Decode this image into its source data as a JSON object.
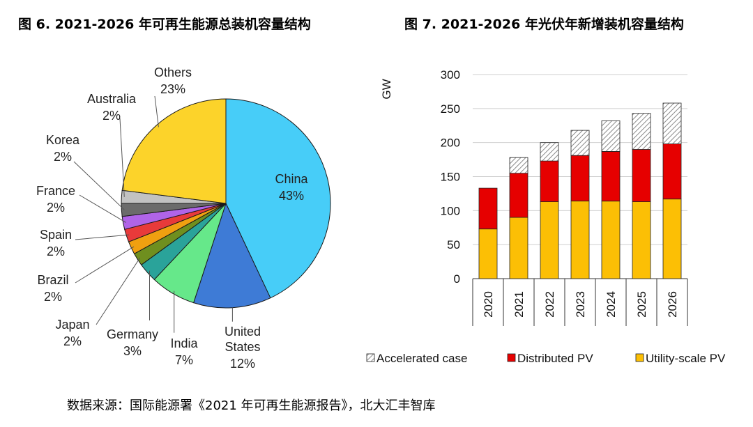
{
  "figures": {
    "pie_title": "图 6. 2021-2026 年可再生能源总装机容量结构",
    "bar_title": "图 7. 2021-2026 年光伏年新增装机容量结构"
  },
  "source_note": "数据来源：国际能源署《2021 年可再生能源报告》，北大汇丰智库",
  "chart_data": [
    {
      "type": "pie",
      "title": "图 6. 2021-2026 年可再生能源总装机容量结构",
      "slices": [
        {
          "label": "China",
          "pct_label": "43%",
          "value": 43,
          "color": "#47cdf8"
        },
        {
          "label": "United States",
          "label_lines": [
            "United",
            "States"
          ],
          "pct_label": "12%",
          "value": 12,
          "color": "#3e7bd6"
        },
        {
          "label": "India",
          "pct_label": "7%",
          "value": 7,
          "color": "#66e88a"
        },
        {
          "label": "Germany",
          "pct_label": "3%",
          "value": 3,
          "color": "#2aa39a"
        },
        {
          "label": "Japan",
          "pct_label": "2%",
          "value": 2,
          "color": "#6f8f1f"
        },
        {
          "label": "Brazil",
          "pct_label": "2%",
          "value": 2,
          "color": "#f0a010"
        },
        {
          "label": "Spain",
          "pct_label": "2%",
          "value": 2,
          "color": "#e83a3a"
        },
        {
          "label": "France",
          "pct_label": "2%",
          "value": 2,
          "color": "#b064e8"
        },
        {
          "label": "Korea",
          "pct_label": "2%",
          "value": 2,
          "color": "#6b6b6b"
        },
        {
          "label": "Australia",
          "pct_label": "2%",
          "value": 2,
          "color": "#c2c2c2"
        },
        {
          "label": "Others",
          "pct_label": "23%",
          "value": 23,
          "color": "#fcd32a"
        }
      ]
    },
    {
      "type": "bar",
      "stacked": true,
      "title": "图 7. 2021-2026 年光伏年新增装机容量结构",
      "ylabel": "GW",
      "ylim": [
        0,
        300
      ],
      "yticks": [
        0,
        50,
        100,
        150,
        200,
        250,
        300
      ],
      "ytick_labels": [
        "0",
        "50",
        "100",
        "150",
        "200",
        "250",
        "300"
      ],
      "grid": true,
      "legend_position": "bottom",
      "categories": [
        "2020",
        "2021",
        "2022",
        "2023",
        "2024",
        "2025",
        "2026"
      ],
      "series": [
        {
          "name": "Utility-scale PV",
          "color": "#fcbf05",
          "values": [
            73,
            90,
            113,
            114,
            114,
            113,
            117
          ]
        },
        {
          "name": "Distributed PV",
          "color": "#e60000",
          "values": [
            60,
            65,
            60,
            67,
            73,
            77,
            81
          ]
        },
        {
          "name": "Accelerated case",
          "color": "#d9d9d9",
          "pattern": "hatch",
          "values": [
            0,
            23,
            27,
            37,
            45,
            53,
            60
          ]
        }
      ],
      "legend_order": [
        "Accelerated case",
        "Distributed PV",
        "Utility-scale PV"
      ]
    }
  ]
}
